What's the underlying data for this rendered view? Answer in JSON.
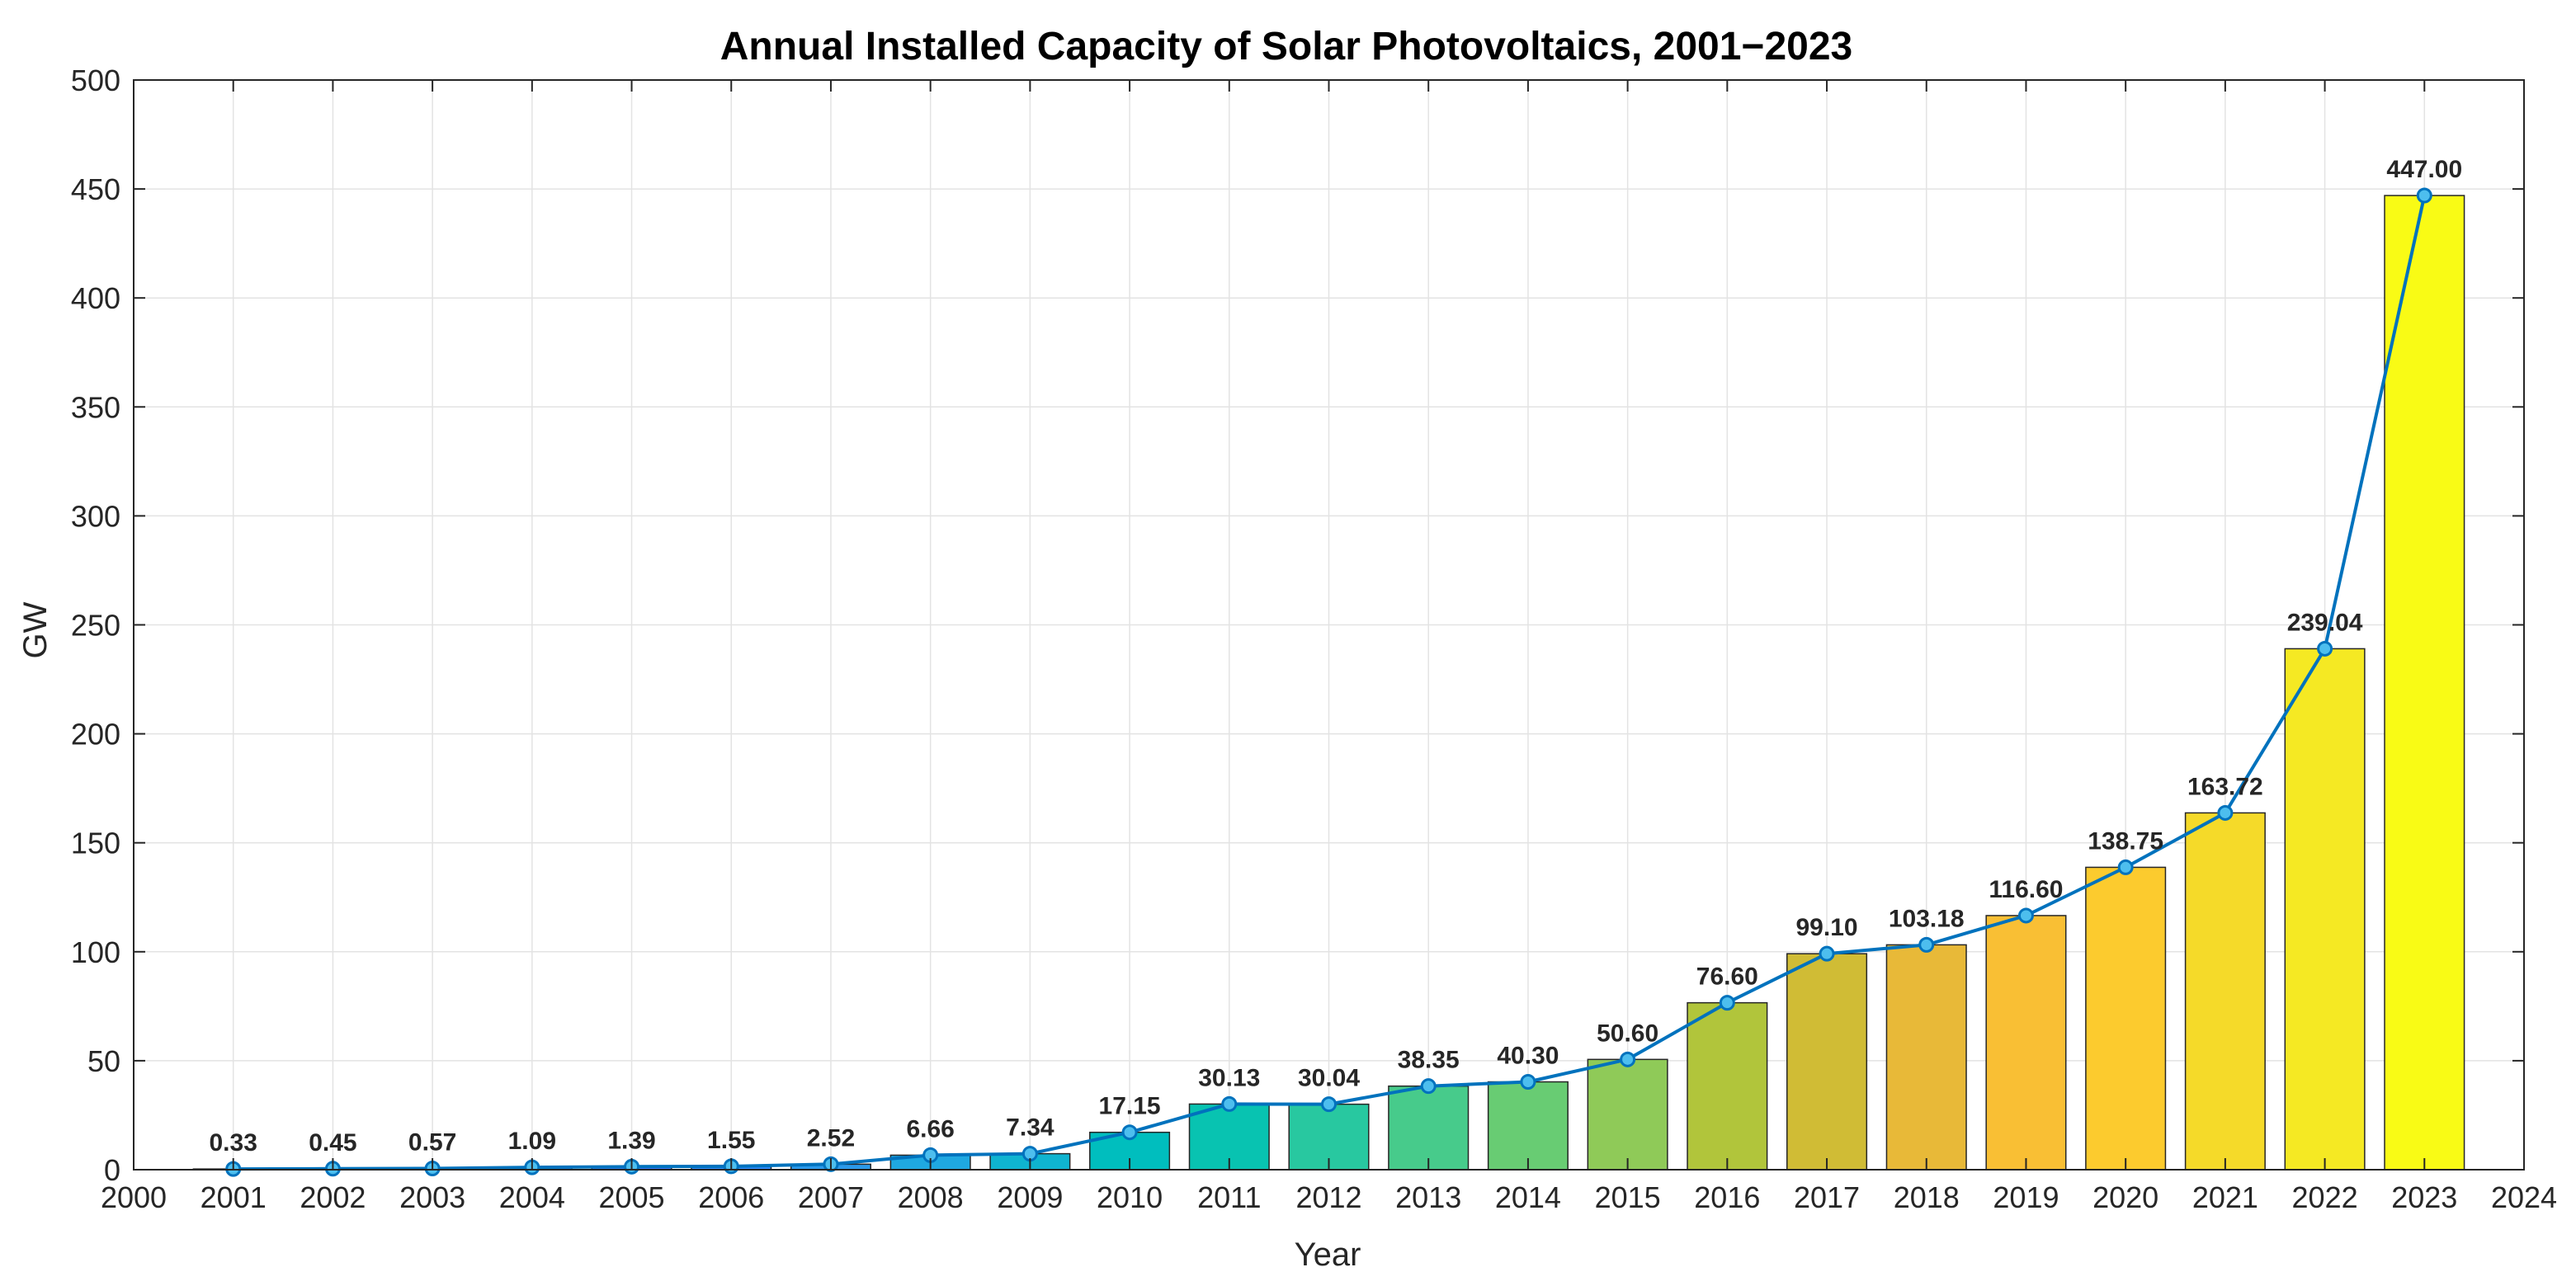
{
  "chart_data": {
    "type": "bar",
    "title": "Annual Installed Capacity of Solar Photovoltaics, 2001−2023",
    "xlabel": "Year",
    "ylabel": "GW",
    "xlim": [
      2000,
      2024
    ],
    "ylim": [
      0,
      500
    ],
    "xticks": [
      2000,
      2001,
      2002,
      2003,
      2004,
      2005,
      2006,
      2007,
      2008,
      2009,
      2010,
      2011,
      2012,
      2013,
      2014,
      2015,
      2016,
      2017,
      2018,
      2019,
      2020,
      2021,
      2022,
      2023,
      2024
    ],
    "yticks": [
      0,
      50,
      100,
      150,
      200,
      250,
      300,
      350,
      400,
      450,
      500
    ],
    "grid": true,
    "categories": [
      2001,
      2002,
      2003,
      2004,
      2005,
      2006,
      2007,
      2008,
      2009,
      2010,
      2011,
      2012,
      2013,
      2014,
      2015,
      2016,
      2017,
      2018,
      2019,
      2020,
      2021,
      2022,
      2023
    ],
    "values": [
      0.33,
      0.45,
      0.57,
      1.09,
      1.39,
      1.55,
      2.52,
      6.66,
      7.34,
      17.15,
      30.13,
      30.04,
      38.35,
      40.3,
      50.6,
      76.6,
      99.1,
      103.18,
      116.6,
      138.75,
      163.72,
      239.04,
      447.0
    ],
    "data_labels": [
      "0.33",
      "0.45",
      "0.57",
      "1.09",
      "1.39",
      "1.55",
      "2.52",
      "6.66",
      "7.34",
      "17.15",
      "30.13",
      "30.04",
      "38.35",
      "40.30",
      "50.60",
      "76.60",
      "99.10",
      "103.18",
      "116.60",
      "138.75",
      "163.72",
      "239.04",
      "447.00"
    ],
    "bar_colors": [
      "#3E26A8",
      "#4433D3",
      "#4747EE",
      "#435CFB",
      "#3A72FE",
      "#2B88F9",
      "#2B99EA",
      "#1FA8E1",
      "#0FB4D0",
      "#00BEBE",
      "#08C3B1",
      "#28C8A0",
      "#47CB8B",
      "#68CC73",
      "#8FCA58",
      "#B1C53B",
      "#D0BC35",
      "#E8B938",
      "#F9BF34",
      "#FCCB2E",
      "#F5DA29",
      "#F5E923",
      "#F9FB15"
    ],
    "line_overlay": {
      "line_color": "#0072BD",
      "marker_fill": "#4DBEEE"
    }
  }
}
